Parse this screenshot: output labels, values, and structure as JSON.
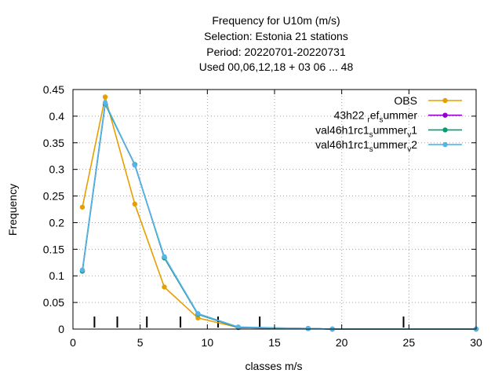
{
  "chart_data": {
    "type": "line",
    "title_lines": [
      "Frequency  for U10m (m/s)",
      "Selection: Estonia      21 stations",
      "Period: 20220701-20220731",
      "Used  00,06,12,18  + 03 06 ... 48"
    ],
    "xlabel": "classes m/s",
    "ylabel": "Frequency",
    "xlim": [
      0,
      30
    ],
    "ylim": [
      0,
      0.45
    ],
    "xticks": [
      0,
      5,
      10,
      15,
      20,
      25,
      30
    ],
    "yticks": [
      0,
      0.05,
      0.1,
      0.15,
      0.2,
      0.25,
      0.3,
      0.35,
      0.4,
      0.45
    ],
    "ytick_labels": [
      "0",
      "0.05",
      "0.1",
      "0.15",
      "0.2",
      "0.25",
      "0.3",
      "0.35",
      "0.4",
      "0.45"
    ],
    "grid": true,
    "legend_position": "top-right",
    "class_markers_x": [
      1.6,
      3.3,
      5.5,
      8.0,
      10.8,
      13.9,
      24.6
    ],
    "series": [
      {
        "name": "OBS",
        "color": "#e69f00",
        "points": [
          [
            0.7,
            0.229
          ],
          [
            2.4,
            0.436
          ],
          [
            4.6,
            0.235
          ],
          [
            6.8,
            0.079
          ],
          [
            9.3,
            0.021
          ],
          [
            12.3,
            0.003
          ],
          [
            17.5,
            0.001
          ],
          [
            19.3,
            0.0
          ],
          [
            30.0,
            0.0
          ]
        ]
      },
      {
        "name_parts": [
          "43h22",
          "ref",
          "summer"
        ],
        "color": "#9400d3",
        "points": [
          [
            0.7,
            0.109
          ],
          [
            2.4,
            0.423
          ],
          [
            4.6,
            0.309
          ],
          [
            6.8,
            0.134
          ],
          [
            9.3,
            0.028
          ],
          [
            12.3,
            0.003
          ],
          [
            17.5,
            0.001
          ],
          [
            19.3,
            0.0
          ],
          [
            30.0,
            0.0
          ]
        ]
      },
      {
        "name_parts": [
          "val46h1rc1",
          "summer",
          "v1"
        ],
        "color": "#009e73",
        "points": [
          [
            0.7,
            0.109
          ],
          [
            2.4,
            0.423
          ],
          [
            4.6,
            0.309
          ],
          [
            6.8,
            0.134
          ],
          [
            9.3,
            0.028
          ],
          [
            12.3,
            0.003
          ],
          [
            17.5,
            0.001
          ],
          [
            19.3,
            0.0
          ],
          [
            30.0,
            0.0
          ]
        ]
      },
      {
        "name_parts": [
          "val46h1rc1",
          "summer",
          "v2"
        ],
        "color": "#56b4e9",
        "points": [
          [
            0.7,
            0.111
          ],
          [
            2.4,
            0.425
          ],
          [
            4.6,
            0.308
          ],
          [
            6.8,
            0.136
          ],
          [
            9.3,
            0.029
          ],
          [
            12.3,
            0.004
          ],
          [
            17.5,
            0.001
          ],
          [
            19.3,
            0.0
          ],
          [
            30.0,
            0.0
          ]
        ]
      }
    ]
  }
}
